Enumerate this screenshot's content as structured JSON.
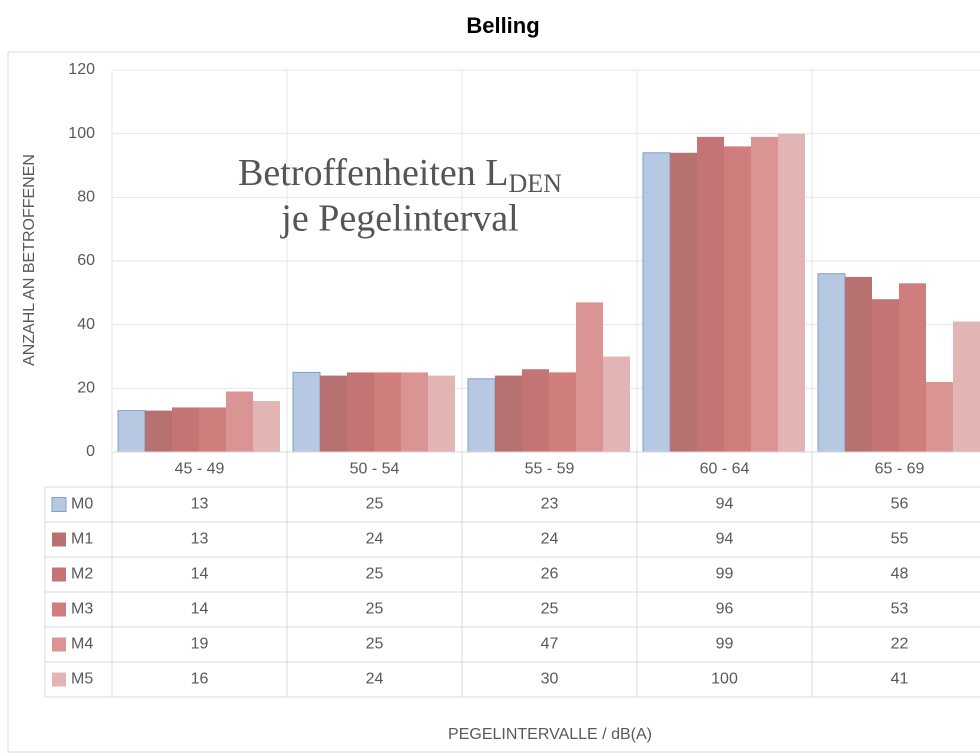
{
  "chart_data": {
    "type": "bar",
    "title": "Belling",
    "y_label": "ANZAHL AN BETROFFENEN",
    "x_label": "PEGELINTERVALLE / dB(A)",
    "annotation": {
      "line1": "Betroffenheiten L",
      "subscript": "DEN",
      "line2": "je Pegelinterval"
    },
    "categories": [
      "45 - 49",
      "50 - 54",
      "55 - 59",
      "60 - 64",
      "65 - 69"
    ],
    "series": [
      {
        "name": "M0",
        "color": "#b7c9e2",
        "values": [
          13,
          25,
          23,
          94,
          56
        ]
      },
      {
        "name": "M1",
        "color": "#b87171",
        "values": [
          13,
          24,
          24,
          94,
          55
        ]
      },
      {
        "name": "M2",
        "color": "#c47474",
        "values": [
          14,
          25,
          26,
          99,
          48
        ]
      },
      {
        "name": "M3",
        "color": "#d07d7d",
        "values": [
          14,
          25,
          25,
          96,
          53
        ]
      },
      {
        "name": "M4",
        "color": "#da9494",
        "values": [
          19,
          25,
          47,
          99,
          22
        ]
      },
      {
        "name": "M5",
        "color": "#e3b4b4",
        "values": [
          16,
          24,
          30,
          100,
          41
        ]
      }
    ],
    "ylim": [
      0,
      120
    ],
    "yticks": [
      0,
      20,
      40,
      60,
      80,
      100,
      120
    ],
    "grid": true,
    "legend": "table"
  }
}
